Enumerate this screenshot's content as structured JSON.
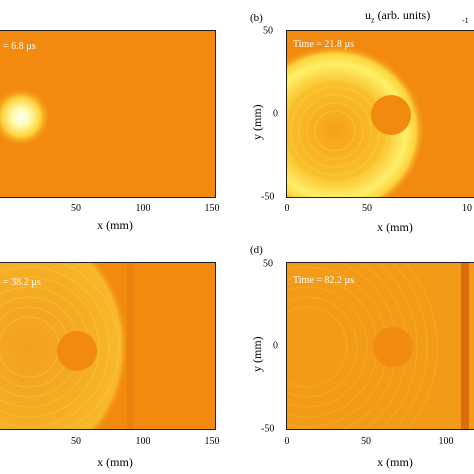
{
  "colorbar": {
    "title": "u",
    "subscript": "z",
    "units": " (arb. units)",
    "tick": "-1"
  },
  "panels": [
    {
      "label": "",
      "time": "= 6.8 µs",
      "xlabel": "x (mm)",
      "ylabel": "",
      "xticks": [
        "50",
        "100",
        "150"
      ],
      "yticks": []
    },
    {
      "label": "(b)",
      "time": "Time = 21.8 µs",
      "xlabel": "x (mm)",
      "ylabel": "y (mm)",
      "xticks": [
        "0",
        "50",
        "10"
      ],
      "yticks": [
        "50",
        "0",
        "-50"
      ]
    },
    {
      "label": "",
      "time": "= 38.2 µs",
      "xlabel": "x (mm)",
      "ylabel": "",
      "xticks": [
        "50",
        "100",
        "150"
      ],
      "yticks": []
    },
    {
      "label": "(d)",
      "time": "Time = 82.2 µs",
      "xlabel": "x (mm)",
      "ylabel": "y (mm)",
      "xticks": [
        "0",
        "50",
        "100"
      ],
      "yticks": [
        "50",
        "0",
        "-50"
      ]
    }
  ]
}
